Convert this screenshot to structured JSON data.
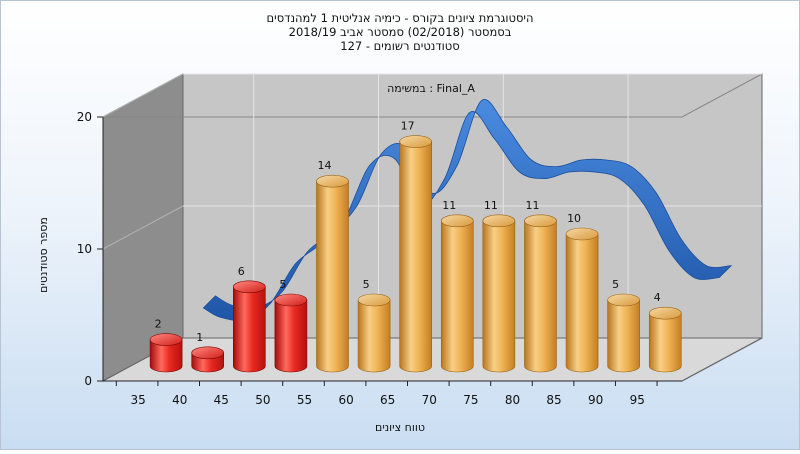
{
  "header": {
    "title_line1": "היסטוגרמת ציונים בקורס - כימיה אנליטית 1 למהנדסים",
    "title_line2": "בסמסטר  (02/2018)  סמסטר אביב 2018/19",
    "title_line3": "סטודנטים רשומים - 127"
  },
  "colors": {
    "fail_bar": "#e0201c",
    "pass_bar": "#e9a84a",
    "distribution_ribbon": "#2f6fc8",
    "plot_back_wall": "#c6c6c6",
    "plot_side_wall": "#8d8d8d",
    "plot_floor": "#d8d8d8"
  },
  "chart_data": {
    "type": "bar",
    "title": "היסטוגרמת ציונים בקורס - כימיה אנליטית 1 למהנדסים",
    "annotation": "במשימה : Final_A",
    "xlabel": "טווח ציונים",
    "ylabel": "מספר סטודנטים",
    "ylim": [
      0,
      20
    ],
    "y_ticks": [
      "0",
      "10",
      "20"
    ],
    "x_ticks": [
      "35",
      "40",
      "45",
      "50",
      "55",
      "60",
      "65",
      "70",
      "75",
      "80",
      "85",
      "90",
      "95"
    ],
    "grid": true,
    "bars": [
      {
        "label": "2",
        "value": 2,
        "status": "fail"
      },
      {
        "label": "1",
        "value": 1,
        "status": "fail"
      },
      {
        "label": "6",
        "value": 6,
        "status": "fail"
      },
      {
        "label": "5",
        "value": 5,
        "status": "fail"
      },
      {
        "label": "14",
        "value": 14,
        "status": "pass"
      },
      {
        "label": "5",
        "value": 5,
        "status": "pass"
      },
      {
        "label": "17",
        "value": 17,
        "status": "pass"
      },
      {
        "label": "11",
        "value": 11,
        "status": "pass"
      },
      {
        "label": "11",
        "value": 11,
        "status": "pass"
      },
      {
        "label": "11",
        "value": 11,
        "status": "pass"
      },
      {
        "label": "10",
        "value": 10,
        "status": "pass"
      },
      {
        "label": "5",
        "value": 5,
        "status": "pass"
      },
      {
        "label": "4",
        "value": 4,
        "status": "pass"
      }
    ],
    "distribution_curve": [
      {
        "x": 39,
        "y": 4.2
      },
      {
        "x": 41,
        "y": 3.5
      },
      {
        "x": 44,
        "y": 3.3
      },
      {
        "x": 47,
        "y": 4.5
      },
      {
        "x": 50,
        "y": 7.5
      },
      {
        "x": 53,
        "y": 9.0
      },
      {
        "x": 56,
        "y": 11.0
      },
      {
        "x": 59,
        "y": 15.0
      },
      {
        "x": 62,
        "y": 15.5
      },
      {
        "x": 65,
        "y": 12.0
      },
      {
        "x": 68,
        "y": 14.0
      },
      {
        "x": 71,
        "y": 19.0
      },
      {
        "x": 74,
        "y": 17.0
      },
      {
        "x": 77,
        "y": 14.5
      },
      {
        "x": 80,
        "y": 14.0
      },
      {
        "x": 83,
        "y": 14.5
      },
      {
        "x": 86,
        "y": 14.5
      },
      {
        "x": 89,
        "y": 14.0
      },
      {
        "x": 92,
        "y": 12.0
      },
      {
        "x": 95,
        "y": 8.5
      },
      {
        "x": 98,
        "y": 6.5
      },
      {
        "x": 101,
        "y": 6.5
      }
    ]
  }
}
